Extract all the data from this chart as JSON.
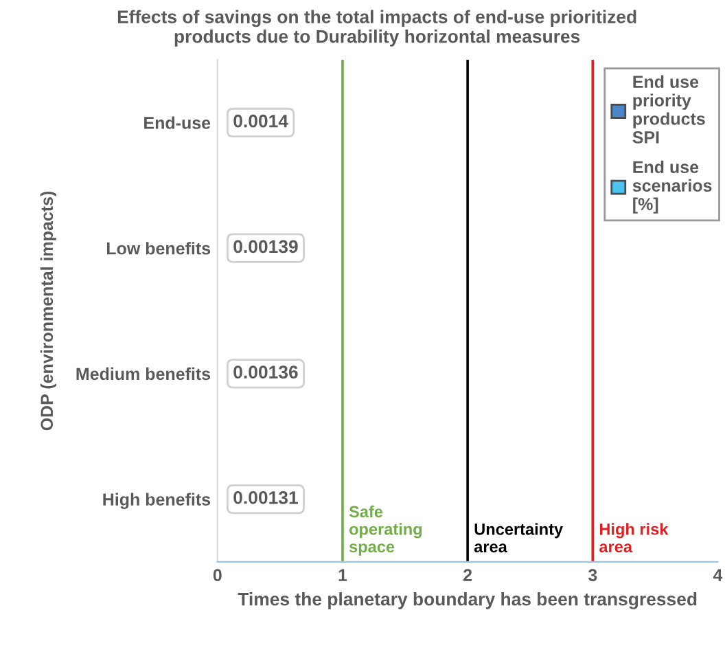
{
  "chart_data": {
    "type": "bar",
    "orientation": "horizontal",
    "title": "Effects of savings on the total impacts of end-use prioritized products due to Durability horizontal measures",
    "xlabel": "Times the planetary boundary has been transgressed",
    "ylabel": "ODP (environmental impacts)",
    "categories": [
      "End-use",
      "Low benefits",
      "Medium benefits",
      "High benefits"
    ],
    "series": [
      {
        "name": "End use priority products SPI",
        "color": "#4a86c8",
        "values": [
          0.0014,
          0.00139,
          0.00136,
          0.00131
        ]
      },
      {
        "name": "End use scenarios [%]",
        "color": "#4dc3f0",
        "values": [
          null,
          null,
          null,
          null
        ]
      }
    ],
    "xlim": [
      0,
      4
    ],
    "xticks": [
      0,
      1,
      2,
      3,
      4
    ],
    "grid": false,
    "legend": "top right",
    "data_labels": true,
    "ref_lines": [
      {
        "axis": "x",
        "value": 1,
        "label": "Safe operating space",
        "color": "#70ad47"
      },
      {
        "axis": "x",
        "value": 2,
        "label": "Uncertainty area",
        "color": "#000000"
      },
      {
        "axis": "x",
        "value": 3,
        "label": "High risk area",
        "color": "#e02020"
      }
    ]
  }
}
